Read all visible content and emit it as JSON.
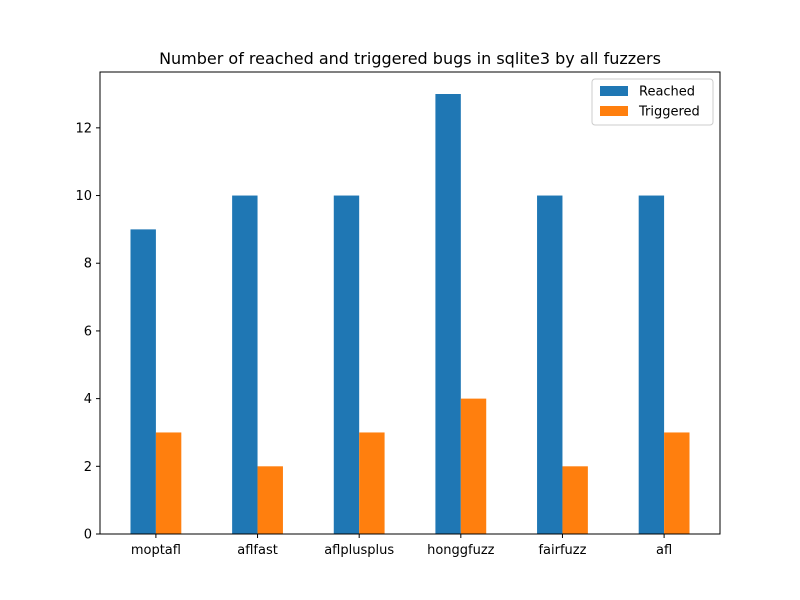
{
  "chart_data": {
    "type": "bar",
    "title": "Number of reached and triggered bugs in sqlite3 by all fuzzers",
    "xlabel": "",
    "ylabel": "",
    "categories": [
      "moptafl",
      "aflfast",
      "aflplusplus",
      "honggfuzz",
      "fairfuzz",
      "afl"
    ],
    "series": [
      {
        "name": "Reached",
        "values": [
          9,
          10,
          10,
          13,
          10,
          10
        ],
        "color": "#1f77b4"
      },
      {
        "name": "Triggered",
        "values": [
          3,
          2,
          3,
          4,
          2,
          3
        ],
        "color": "#ff7f0e"
      }
    ],
    "ylim": [
      0,
      13.65
    ],
    "yticks": [
      0,
      2,
      4,
      6,
      8,
      10,
      12
    ],
    "grid": false,
    "legend_position": "top-right"
  }
}
